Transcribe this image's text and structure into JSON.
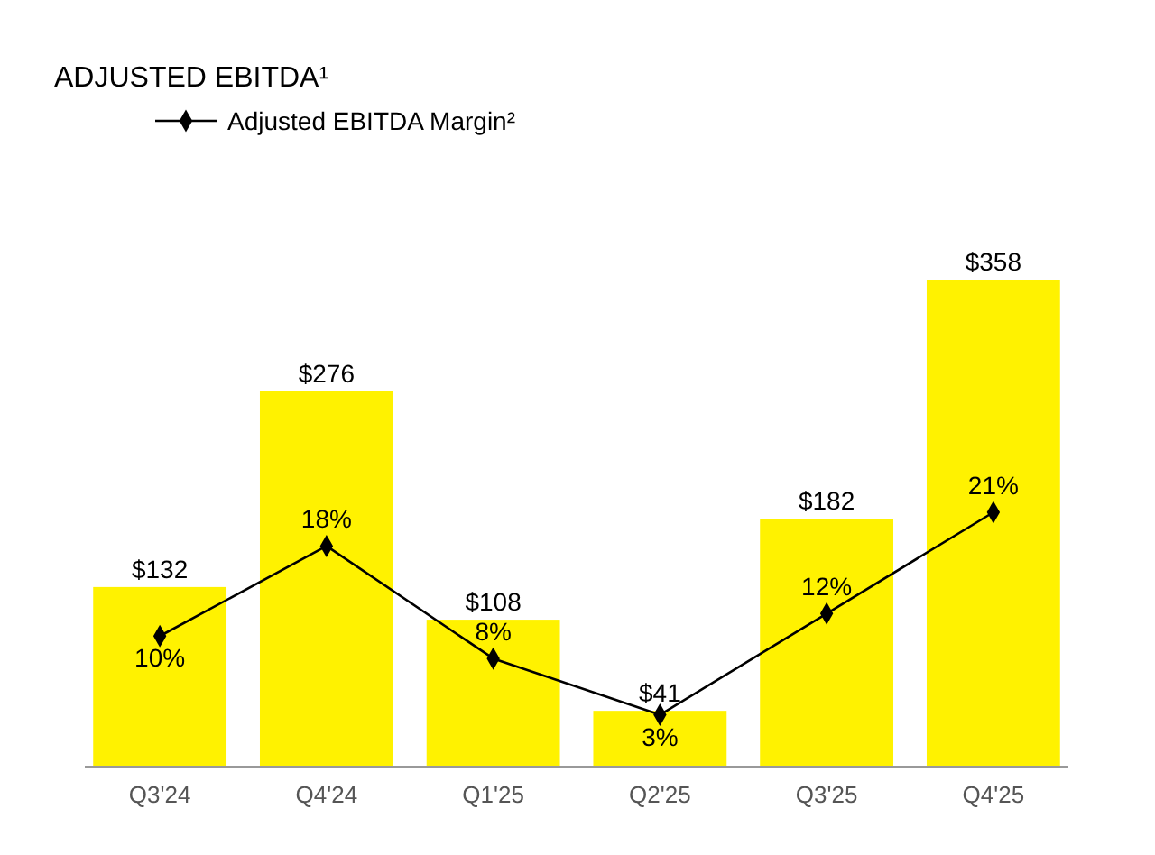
{
  "chart_data": {
    "type": "bar",
    "title": "ADJUSTED EBITDA¹",
    "categories": [
      "Q3'24",
      "Q4'24",
      "Q1'25",
      "Q2'25",
      "Q3'25",
      "Q4'25"
    ],
    "series": [
      {
        "color": "#fff200",
        "values": [
          132,
          276,
          108,
          41,
          182,
          358
        ],
        "value_labels": [
          "$132",
          "$276",
          "$108",
          "$41",
          "$182",
          "$358"
        ]
      },
      {
        "type": "line",
        "name": "Adjusted EBITDA Margin²",
        "color": "#000000",
        "axis": "y2",
        "marker": "diamond",
        "values": [
          10,
          18,
          8,
          3,
          12,
          21
        ],
        "value_labels": [
          "10%",
          "18%",
          "8%",
          "3%",
          "12%",
          "21%"
        ]
      }
    ],
    "tick_labels": "x",
    "legend": "top left"
  }
}
